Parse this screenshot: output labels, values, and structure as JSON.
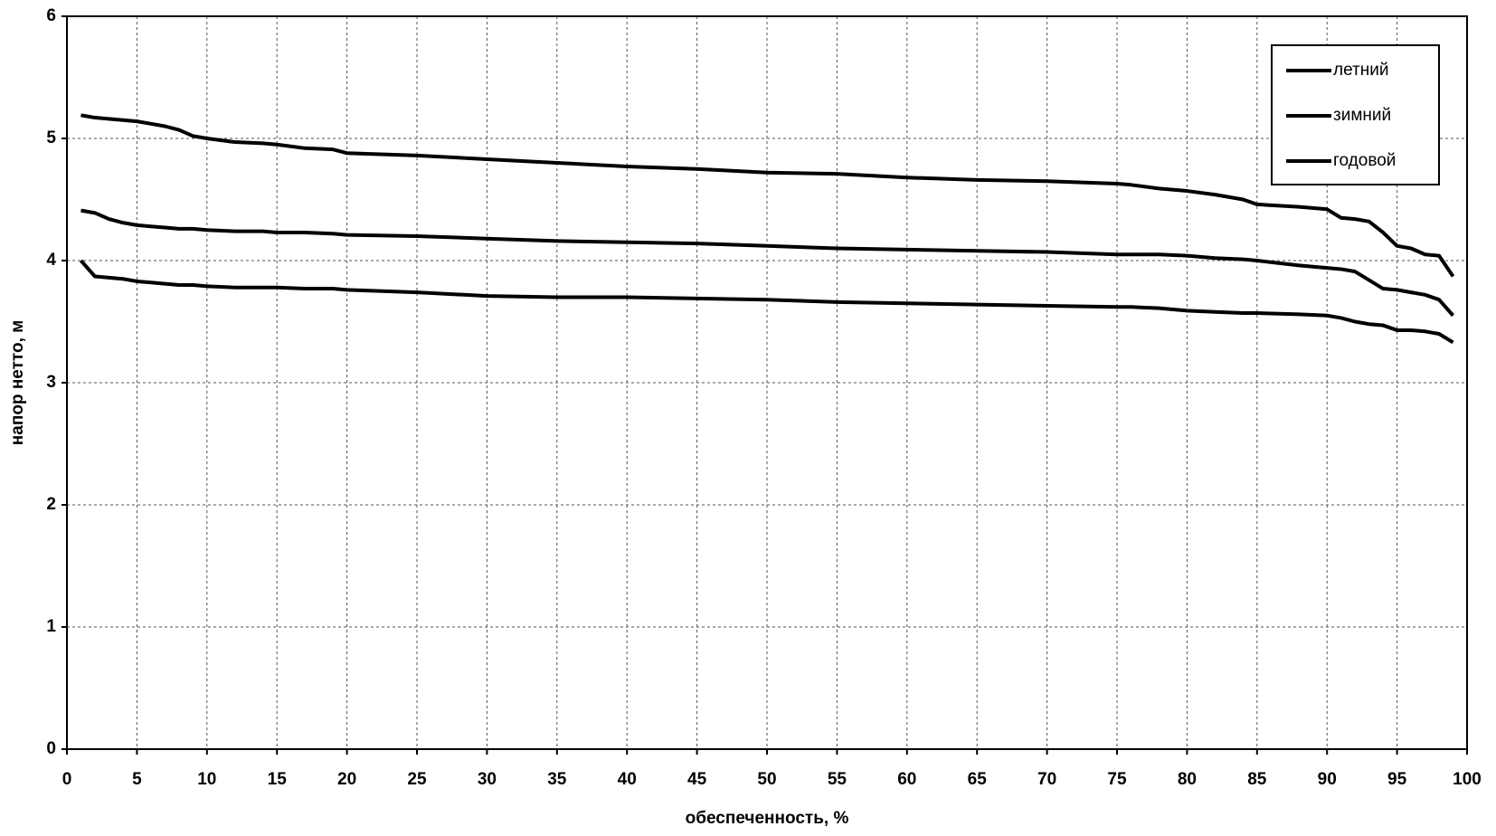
{
  "chart_data": {
    "type": "line",
    "xlabel": "обеспеченность, %",
    "ylabel": "напор нетто, м",
    "x": [
      1,
      2,
      3,
      4,
      5,
      6,
      7,
      8,
      9,
      10,
      12,
      14,
      15,
      17,
      19,
      20,
      25,
      30,
      35,
      40,
      45,
      50,
      55,
      60,
      65,
      70,
      75,
      76,
      78,
      80,
      82,
      84,
      85,
      88,
      90,
      91,
      92,
      93,
      94,
      95,
      96,
      97,
      98,
      99
    ],
    "series": [
      {
        "name": "летний",
        "color": "#000000",
        "values": [
          5.19,
          5.17,
          5.16,
          5.15,
          5.14,
          5.12,
          5.1,
          5.07,
          5.02,
          5.0,
          4.97,
          4.96,
          4.95,
          4.92,
          4.91,
          4.88,
          4.86,
          4.83,
          4.8,
          4.77,
          4.75,
          4.72,
          4.71,
          4.68,
          4.66,
          4.65,
          4.63,
          4.62,
          4.59,
          4.57,
          4.54,
          4.5,
          4.46,
          4.44,
          4.42,
          4.35,
          4.34,
          4.32,
          4.23,
          4.12,
          4.1,
          4.05,
          4.04,
          3.87
        ]
      },
      {
        "name": "зимний",
        "color": "#000000",
        "values": [
          4.41,
          4.39,
          4.34,
          4.31,
          4.29,
          4.28,
          4.27,
          4.26,
          4.26,
          4.25,
          4.24,
          4.24,
          4.23,
          4.23,
          4.22,
          4.21,
          4.2,
          4.18,
          4.16,
          4.15,
          4.14,
          4.12,
          4.1,
          4.09,
          4.08,
          4.07,
          4.05,
          4.05,
          4.05,
          4.04,
          4.02,
          4.01,
          4.0,
          3.96,
          3.94,
          3.93,
          3.91,
          3.84,
          3.77,
          3.76,
          3.74,
          3.72,
          3.68,
          3.55
        ]
      },
      {
        "name": "годовой",
        "color": "#000000",
        "values": [
          4.0,
          3.87,
          3.86,
          3.85,
          3.83,
          3.82,
          3.81,
          3.8,
          3.8,
          3.79,
          3.78,
          3.78,
          3.78,
          3.77,
          3.77,
          3.76,
          3.74,
          3.71,
          3.7,
          3.7,
          3.69,
          3.68,
          3.66,
          3.65,
          3.64,
          3.63,
          3.62,
          3.62,
          3.61,
          3.59,
          3.58,
          3.57,
          3.57,
          3.56,
          3.55,
          3.53,
          3.5,
          3.48,
          3.47,
          3.43,
          3.43,
          3.42,
          3.4,
          3.33
        ]
      }
    ],
    "xlim": [
      0,
      100
    ],
    "xticks": [
      0,
      5,
      10,
      15,
      20,
      25,
      30,
      35,
      40,
      45,
      50,
      55,
      60,
      65,
      70,
      75,
      80,
      85,
      90,
      95,
      100
    ],
    "ylim": [
      0,
      6
    ],
    "yticks": [
      0,
      1,
      2,
      3,
      4,
      5,
      6
    ],
    "grid": true,
    "legend": "upper-right"
  }
}
